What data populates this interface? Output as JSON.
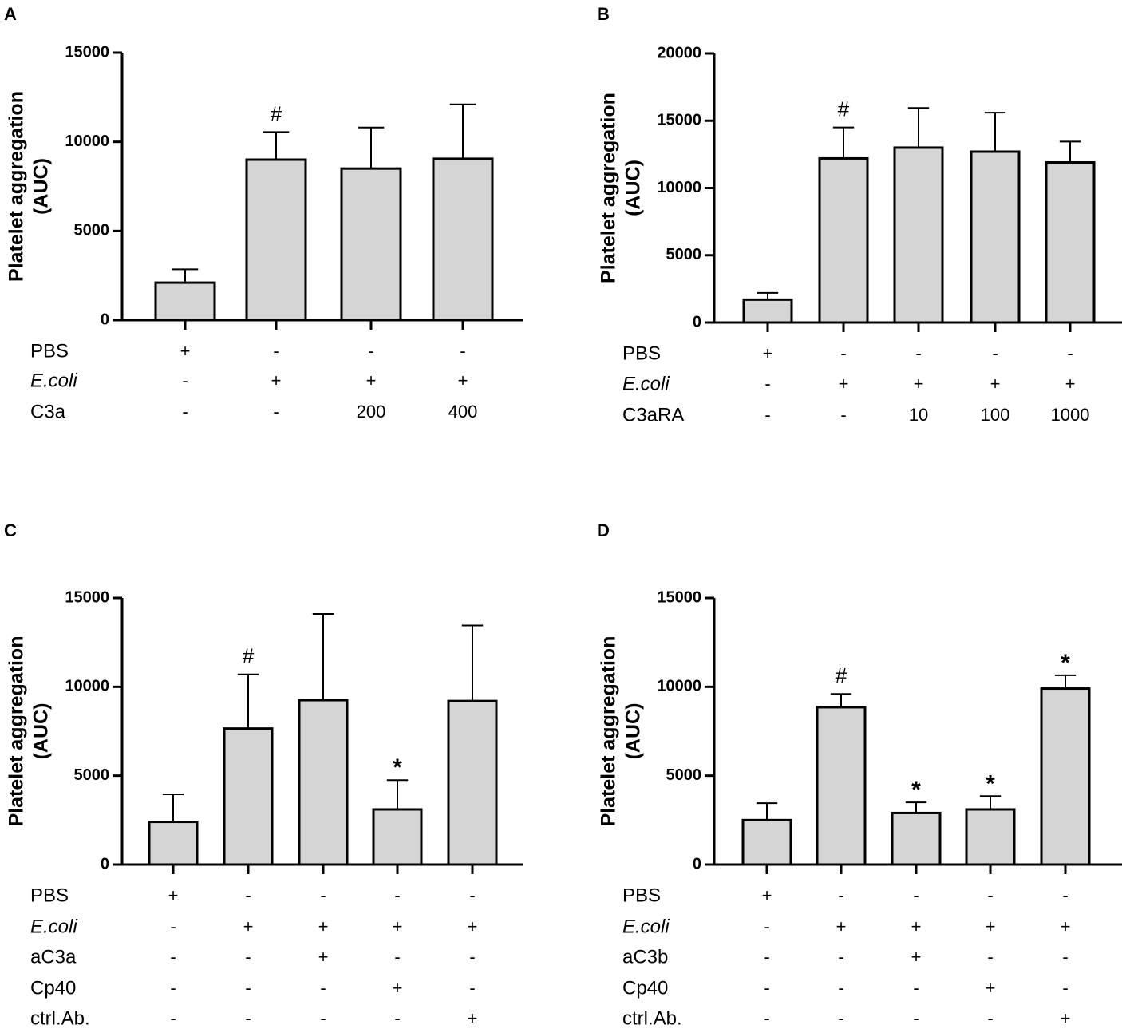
{
  "chart_data": [
    {
      "panel": "A",
      "type": "bar",
      "ylabel": "Platelet aggregation",
      "ylabel2": "(AUC)",
      "ylim": [
        0,
        15000
      ],
      "yticks": [
        "0",
        "5000",
        "10000",
        "15000"
      ],
      "values": [
        2100,
        9000,
        8500,
        9050
      ],
      "errors": [
        750,
        1550,
        2300,
        3050
      ],
      "markers": [
        "",
        "#",
        "",
        ""
      ],
      "rows": [
        {
          "label": "PBS",
          "italic": false,
          "cells": [
            "+",
            "-",
            "-",
            "-"
          ]
        },
        {
          "label": "E.coli",
          "italic": true,
          "cells": [
            "-",
            "+",
            "+",
            "+"
          ]
        },
        {
          "label": "C3a",
          "italic": false,
          "cells": [
            "-",
            "-",
            "200",
            "400"
          ]
        }
      ]
    },
    {
      "panel": "B",
      "type": "bar",
      "ylabel": "Platelet aggregation",
      "ylabel2": "(AUC)",
      "ylim": [
        0,
        20000
      ],
      "yticks": [
        "0",
        "5000",
        "10000",
        "15000",
        "20000"
      ],
      "values": [
        1700,
        12200,
        13000,
        12700,
        11900
      ],
      "errors": [
        500,
        2300,
        2950,
        2900,
        1550
      ],
      "markers": [
        "",
        "#",
        "",
        "",
        ""
      ],
      "rows": [
        {
          "label": "PBS",
          "italic": false,
          "cells": [
            "+",
            "-",
            "-",
            "-",
            "-"
          ]
        },
        {
          "label": "E.coli",
          "italic": true,
          "cells": [
            "-",
            "+",
            "+",
            "+",
            "+"
          ]
        },
        {
          "label": "C3aRA",
          "italic": false,
          "cells": [
            "-",
            "-",
            "10",
            "100",
            "1000"
          ]
        }
      ]
    },
    {
      "panel": "C",
      "type": "bar",
      "ylabel": "Platelet aggregation",
      "ylabel2": "(AUC)",
      "ylim": [
        0,
        15000
      ],
      "yticks": [
        "0",
        "5000",
        "10000",
        "15000"
      ],
      "values": [
        2400,
        7650,
        9250,
        3100,
        9200
      ],
      "errors": [
        1550,
        3050,
        4850,
        1650,
        4250
      ],
      "markers": [
        "",
        "#",
        "",
        "*",
        ""
      ],
      "rows": [
        {
          "label": "PBS",
          "italic": false,
          "cells": [
            "+",
            "-",
            "-",
            "-",
            "-"
          ]
        },
        {
          "label": "E.coli",
          "italic": true,
          "cells": [
            "-",
            "+",
            "+",
            "+",
            "+"
          ]
        },
        {
          "label": "aC3a",
          "italic": false,
          "cells": [
            "-",
            "-",
            "+",
            "-",
            "-"
          ]
        },
        {
          "label": "Cp40",
          "italic": false,
          "cells": [
            "-",
            "-",
            "-",
            "+",
            "-"
          ]
        },
        {
          "label": "ctrl.Ab.",
          "italic": false,
          "cells": [
            "-",
            "-",
            "-",
            "-",
            "+"
          ]
        }
      ]
    },
    {
      "panel": "D",
      "type": "bar",
      "ylabel": "Platelet aggregation",
      "ylabel2": "(AUC)",
      "ylim": [
        0,
        15000
      ],
      "yticks": [
        "0",
        "5000",
        "10000",
        "15000"
      ],
      "values": [
        2500,
        8850,
        2900,
        3100,
        9900
      ],
      "errors": [
        950,
        750,
        600,
        750,
        750
      ],
      "markers": [
        "",
        "#",
        "*",
        "*",
        "*"
      ],
      "rows": [
        {
          "label": "PBS",
          "italic": false,
          "cells": [
            "+",
            "-",
            "-",
            "-",
            "-"
          ]
        },
        {
          "label": "E.coli",
          "italic": true,
          "cells": [
            "-",
            "+",
            "+",
            "+",
            "+"
          ]
        },
        {
          "label": "aC3b",
          "italic": false,
          "cells": [
            "-",
            "-",
            "+",
            "-",
            "-"
          ]
        },
        {
          "label": "Cp40",
          "italic": false,
          "cells": [
            "-",
            "-",
            "-",
            "+",
            "-"
          ]
        },
        {
          "label": "ctrl.Ab.",
          "italic": false,
          "cells": [
            "-",
            "-",
            "-",
            "-",
            "+"
          ]
        }
      ]
    }
  ],
  "colors": {
    "bar_fill": "#d4d5d4",
    "stroke": "#000000"
  }
}
